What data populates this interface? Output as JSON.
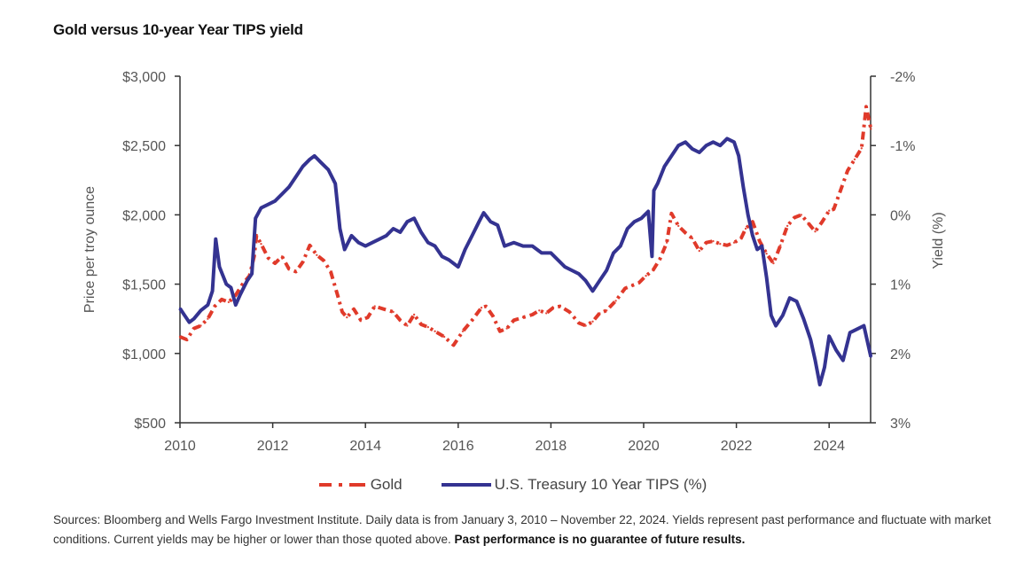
{
  "header": {
    "title": "Gold versus 10-year Year TIPS yield"
  },
  "footnote": {
    "text": "Sources: Bloomberg and Wells Fargo Investment Institute. Daily data is from January 3, 2010 – November 22, 2024. Yields represent past performance and fluctuate with market conditions. Current yields may be higher or lower than those quoted above. ",
    "bold": "Past performance is no guarantee of future results."
  },
  "chart_data": {
    "type": "line",
    "title": "Gold versus 10-year Year TIPS yield",
    "xlabel": "",
    "ylabel": "Price per troy ounce",
    "y2label": "Yield (%)",
    "xlim": [
      2010,
      2024.9
    ],
    "ylim": [
      500,
      3000
    ],
    "y2lim": [
      -2,
      3
    ],
    "y2_inverted": true,
    "grid": false,
    "legend_position": "bottom-center",
    "x_ticks": [
      "2010",
      "2012",
      "2014",
      "2016",
      "2018",
      "2020",
      "2022",
      "2024"
    ],
    "x_tick_values": [
      2010,
      2012,
      2014,
      2016,
      2018,
      2020,
      2022,
      2024
    ],
    "y_ticks": [
      "$500",
      "$1,000",
      "$1,500",
      "$2,000",
      "$2,500",
      "$3,000"
    ],
    "y_tick_values": [
      500,
      1000,
      1500,
      2000,
      2500,
      3000
    ],
    "y2_ticks": [
      "-2%",
      "-1%",
      "0%",
      "1%",
      "2%",
      "3%"
    ],
    "y2_tick_values": [
      -2,
      -1,
      0,
      1,
      2,
      3
    ],
    "series": [
      {
        "name": "Gold",
        "axis": "left",
        "color": "#e03a2a",
        "style": "dash-dot",
        "x": [
          2010.0,
          2010.15,
          2010.3,
          2010.45,
          2010.6,
          2010.75,
          2010.9,
          2011.05,
          2011.2,
          2011.35,
          2011.5,
          2011.6,
          2011.65,
          2011.75,
          2011.9,
          2012.05,
          2012.2,
          2012.35,
          2012.5,
          2012.65,
          2012.8,
          2012.95,
          2013.1,
          2013.25,
          2013.4,
          2013.5,
          2013.6,
          2013.75,
          2013.9,
          2014.05,
          2014.2,
          2014.4,
          2014.6,
          2014.75,
          2014.9,
          2015.05,
          2015.2,
          2015.35,
          2015.5,
          2015.7,
          2015.9,
          2016.1,
          2016.3,
          2016.5,
          2016.6,
          2016.75,
          2016.9,
          2017.05,
          2017.2,
          2017.4,
          2017.6,
          2017.75,
          2017.9,
          2018.05,
          2018.2,
          2018.4,
          2018.6,
          2018.75,
          2018.9,
          2019.05,
          2019.2,
          2019.4,
          2019.6,
          2019.75,
          2019.9,
          2020.05,
          2020.2,
          2020.35,
          2020.5,
          2020.6,
          2020.75,
          2020.9,
          2021.05,
          2021.2,
          2021.35,
          2021.5,
          2021.65,
          2021.8,
          2021.95,
          2022.1,
          2022.2,
          2022.35,
          2022.5,
          2022.65,
          2022.8,
          2022.95,
          2023.1,
          2023.25,
          2023.4,
          2023.55,
          2023.7,
          2023.85,
          2024.0,
          2024.1,
          2024.25,
          2024.4,
          2024.55,
          2024.7,
          2024.8,
          2024.9
        ],
        "values": [
          1120,
          1100,
          1180,
          1200,
          1250,
          1340,
          1390,
          1370,
          1420,
          1500,
          1560,
          1700,
          1850,
          1790,
          1690,
          1650,
          1700,
          1610,
          1590,
          1660,
          1780,
          1710,
          1670,
          1590,
          1420,
          1300,
          1260,
          1320,
          1240,
          1260,
          1340,
          1320,
          1300,
          1240,
          1200,
          1280,
          1210,
          1190,
          1160,
          1120,
          1060,
          1160,
          1240,
          1330,
          1340,
          1270,
          1160,
          1180,
          1240,
          1260,
          1280,
          1310,
          1290,
          1330,
          1340,
          1300,
          1220,
          1200,
          1230,
          1290,
          1310,
          1380,
          1470,
          1490,
          1510,
          1560,
          1600,
          1680,
          1800,
          2010,
          1920,
          1870,
          1830,
          1740,
          1800,
          1810,
          1790,
          1780,
          1800,
          1830,
          1900,
          1950,
          1810,
          1720,
          1650,
          1780,
          1920,
          1980,
          2000,
          1940,
          1880,
          1950,
          2030,
          2040,
          2180,
          2320,
          2400,
          2480,
          2780,
          2620
        ]
      },
      {
        "name": "U.S. Treasury 10 Year TIPS (%)",
        "axis": "right",
        "color": "#343391",
        "style": "solid",
        "x": [
          2010.0,
          2010.1,
          2010.2,
          2010.3,
          2010.45,
          2010.6,
          2010.7,
          2010.77,
          2010.85,
          2011.0,
          2011.1,
          2011.2,
          2011.3,
          2011.45,
          2011.55,
          2011.63,
          2011.75,
          2011.9,
          2012.05,
          2012.2,
          2012.35,
          2012.5,
          2012.65,
          2012.8,
          2012.9,
          2013.05,
          2013.2,
          2013.35,
          2013.45,
          2013.55,
          2013.7,
          2013.85,
          2014.0,
          2014.15,
          2014.3,
          2014.45,
          2014.6,
          2014.75,
          2014.9,
          2015.05,
          2015.2,
          2015.35,
          2015.5,
          2015.65,
          2015.8,
          2016.0,
          2016.15,
          2016.3,
          2016.45,
          2016.55,
          2016.7,
          2016.85,
          2017.0,
          2017.2,
          2017.4,
          2017.6,
          2017.8,
          2018.0,
          2018.15,
          2018.3,
          2018.45,
          2018.6,
          2018.75,
          2018.9,
          2019.05,
          2019.2,
          2019.35,
          2019.5,
          2019.65,
          2019.8,
          2019.95,
          2020.1,
          2020.18,
          2020.22,
          2020.3,
          2020.45,
          2020.6,
          2020.75,
          2020.9,
          2021.05,
          2021.2,
          2021.35,
          2021.5,
          2021.65,
          2021.8,
          2021.95,
          2022.05,
          2022.15,
          2022.25,
          2022.35,
          2022.45,
          2022.55,
          2022.65,
          2022.75,
          2022.85,
          2023.0,
          2023.15,
          2023.3,
          2023.45,
          2023.6,
          2023.7,
          2023.8,
          2023.9,
          2024.0,
          2024.15,
          2024.3,
          2024.45,
          2024.6,
          2024.75,
          2024.9
        ],
        "values": [
          1.35,
          1.45,
          1.55,
          1.5,
          1.38,
          1.3,
          1.1,
          0.35,
          0.75,
          1.0,
          1.05,
          1.3,
          1.15,
          0.95,
          0.85,
          0.05,
          -0.1,
          -0.15,
          -0.2,
          -0.3,
          -0.4,
          -0.55,
          -0.7,
          -0.8,
          -0.85,
          -0.75,
          -0.65,
          -0.45,
          0.2,
          0.5,
          0.3,
          0.4,
          0.45,
          0.4,
          0.35,
          0.3,
          0.2,
          0.25,
          0.1,
          0.05,
          0.25,
          0.4,
          0.45,
          0.6,
          0.65,
          0.75,
          0.5,
          0.3,
          0.1,
          -0.03,
          0.1,
          0.15,
          0.45,
          0.4,
          0.45,
          0.45,
          0.55,
          0.55,
          0.65,
          0.75,
          0.8,
          0.85,
          0.95,
          1.1,
          0.95,
          0.8,
          0.55,
          0.45,
          0.2,
          0.1,
          0.05,
          -0.05,
          0.6,
          -0.35,
          -0.45,
          -0.7,
          -0.85,
          -1.0,
          -1.05,
          -0.95,
          -0.9,
          -1.0,
          -1.05,
          -1.0,
          -1.1,
          -1.05,
          -0.85,
          -0.4,
          0.0,
          0.3,
          0.5,
          0.45,
          0.9,
          1.45,
          1.6,
          1.45,
          1.2,
          1.25,
          1.5,
          1.8,
          2.1,
          2.45,
          2.2,
          1.75,
          1.95,
          2.1,
          1.7,
          1.65,
          1.6,
          2.05
        ]
      }
    ]
  },
  "legend": {
    "items": [
      {
        "label": "Gold",
        "color": "#e03a2a",
        "style": "dash-dot"
      },
      {
        "label": "U.S. Treasury 10 Year TIPS (%)",
        "color": "#343391",
        "style": "solid"
      }
    ]
  }
}
